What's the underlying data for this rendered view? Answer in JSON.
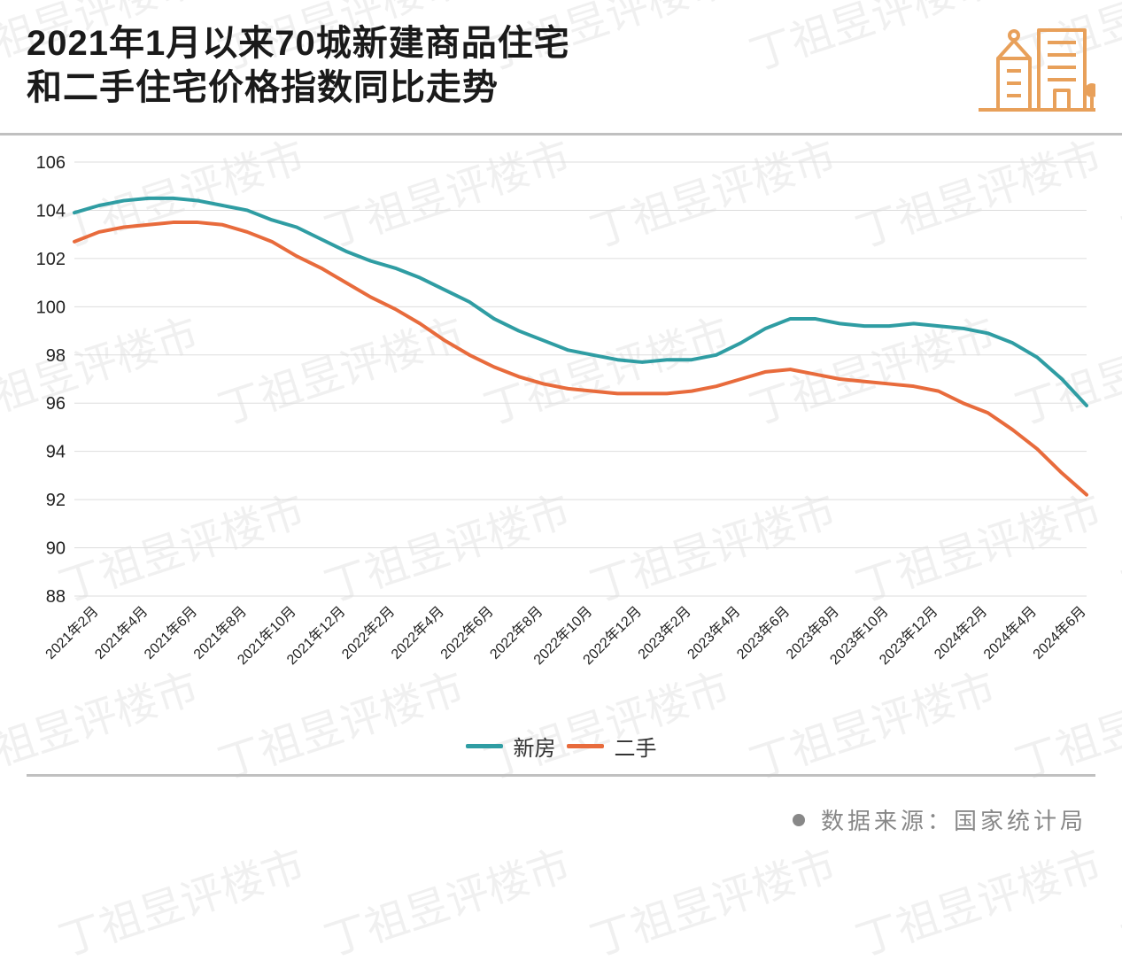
{
  "title_line1": "2021年1月以来70城新建商品住宅",
  "title_line2": "和二手住宅价格指数同比走势",
  "source_label": "数据来源：国家统计局",
  "watermark_text": "丁祖昱评楼市",
  "icon": {
    "name": "buildings-icon",
    "stroke": "#e8a05a"
  },
  "chart": {
    "type": "line",
    "background_color": "#ffffff",
    "grid_color": "#dddddd",
    "axis_text_color": "#222222",
    "y": {
      "min": 88,
      "max": 106,
      "step": 2,
      "label_fontsize": 20
    },
    "x_labels": [
      "2021年2月",
      "2021年4月",
      "2021年6月",
      "2021年8月",
      "2021年10月",
      "2021年12月",
      "2022年2月",
      "2022年4月",
      "2022年6月",
      "2022年8月",
      "2022年10月",
      "2022年12月",
      "2023年2月",
      "2023年4月",
      "2023年6月",
      "2023年8月",
      "2023年10月",
      "2023年12月",
      "2024年2月",
      "2024年4月",
      "2024年6月"
    ],
    "x_label_fontsize": 16,
    "x_label_rotation_deg": -45,
    "categories": [
      "2021-01",
      "2021-02",
      "2021-03",
      "2021-04",
      "2021-05",
      "2021-06",
      "2021-07",
      "2021-08",
      "2021-09",
      "2021-10",
      "2021-11",
      "2021-12",
      "2022-01",
      "2022-02",
      "2022-03",
      "2022-04",
      "2022-05",
      "2022-06",
      "2022-07",
      "2022-08",
      "2022-09",
      "2022-10",
      "2022-11",
      "2022-12",
      "2023-01",
      "2023-02",
      "2023-03",
      "2023-04",
      "2023-05",
      "2023-06",
      "2023-07",
      "2023-08",
      "2023-09",
      "2023-10",
      "2023-11",
      "2023-12",
      "2024-01",
      "2024-02",
      "2024-03",
      "2024-04",
      "2024-05",
      "2024-06"
    ],
    "series": [
      {
        "name": "新房",
        "color": "#2f9da3",
        "line_width": 4,
        "values": [
          103.9,
          104.2,
          104.4,
          104.5,
          104.5,
          104.4,
          104.2,
          104.0,
          103.6,
          103.3,
          102.8,
          102.3,
          101.9,
          101.6,
          101.2,
          100.7,
          100.2,
          99.5,
          99.0,
          98.6,
          98.2,
          98.0,
          97.8,
          97.7,
          97.8,
          97.8,
          98.0,
          98.5,
          99.1,
          99.5,
          99.5,
          99.3,
          99.2,
          99.2,
          99.3,
          99.2,
          99.1,
          98.9,
          98.5,
          97.9,
          97.0,
          95.9
        ]
      },
      {
        "name": "二手",
        "color": "#e86b3c",
        "line_width": 4,
        "values": [
          102.7,
          103.1,
          103.3,
          103.4,
          103.5,
          103.5,
          103.4,
          103.1,
          102.7,
          102.1,
          101.6,
          101.0,
          100.4,
          99.9,
          99.3,
          98.6,
          98.0,
          97.5,
          97.1,
          96.8,
          96.6,
          96.5,
          96.4,
          96.4,
          96.4,
          96.5,
          96.7,
          97.0,
          97.3,
          97.4,
          97.2,
          97.0,
          96.9,
          96.8,
          96.7,
          96.5,
          96.0,
          95.6,
          94.9,
          94.1,
          93.1,
          92.2
        ]
      }
    ],
    "legend": {
      "position": "bottom",
      "fontsize": 24,
      "swatch_width": 42,
      "swatch_height": 5
    }
  }
}
